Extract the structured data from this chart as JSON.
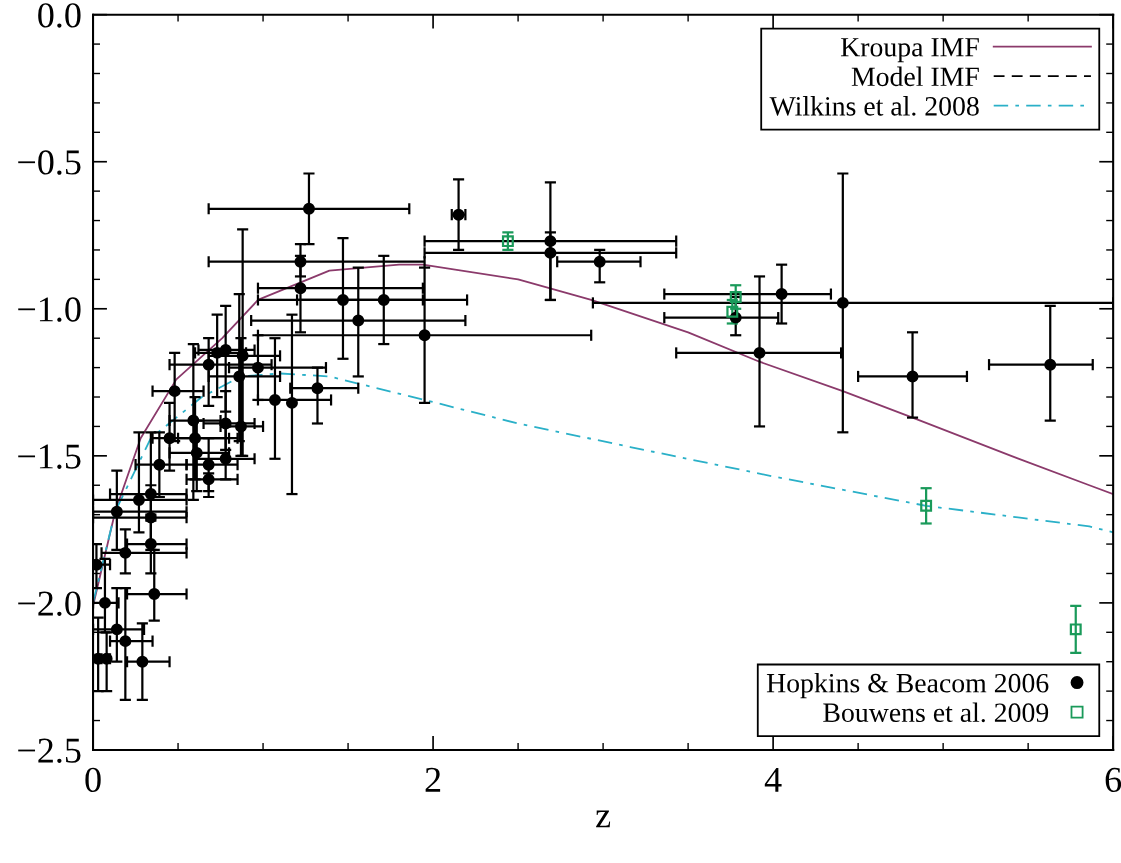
{
  "chart_data": {
    "type": "scatter",
    "xlabel": "z",
    "xlim": [
      0,
      6
    ],
    "xticks": [
      0,
      2,
      4,
      6
    ],
    "ylim": [
      -2.5,
      0.0
    ],
    "yticks": [
      {
        "value": 0.0,
        "label": "0.0"
      },
      {
        "value": -0.5,
        "label": "−0.5"
      },
      {
        "value": -1.0,
        "label": "−1.0"
      },
      {
        "value": -1.5,
        "label": "−1.5"
      },
      {
        "value": -2.0,
        "label": "−2.0"
      },
      {
        "value": -2.5,
        "label": "−2.5"
      }
    ],
    "grid": false,
    "legend": "top right",
    "series": [
      {
        "name": "Kroupa IMF",
        "type": "line",
        "color": "#8b3a6b",
        "line_style": "solid",
        "marker": "none",
        "x": [
          0,
          0.13,
          0.28,
          0.49,
          0.76,
          0.97,
          1.39,
          1.8,
          1.94,
          2.5,
          2.93,
          3.5,
          3.92,
          4.41,
          4.82,
          5.4,
          5.86,
          6.0
        ],
        "values": [
          -2.01,
          -1.69,
          -1.44,
          -1.24,
          -1.1,
          -0.97,
          -0.87,
          -0.85,
          -0.85,
          -0.9,
          -0.97,
          -1.08,
          -1.18,
          -1.28,
          -1.37,
          -1.5,
          -1.6,
          -1.63
        ]
      },
      {
        "name": "Model IMF",
        "type": "line",
        "color": "#000000",
        "line_style": "dashed",
        "marker": "none"
      },
      {
        "name": "Wilkins et al. 2008",
        "type": "line",
        "color": "#2ab0c8",
        "line_style": "dashdot",
        "marker": "none",
        "x": [
          0,
          0.13,
          0.34,
          0.64,
          0.87,
          1.1,
          1.39,
          1.95,
          2.5,
          3.16,
          4.0,
          4.9,
          5.86,
          6.0
        ],
        "values": [
          -2.0,
          -1.69,
          -1.44,
          -1.3,
          -1.23,
          -1.22,
          -1.23,
          -1.31,
          -1.39,
          -1.47,
          -1.57,
          -1.67,
          -1.74,
          -1.76
        ]
      },
      {
        "name": "Hopkins & Beacom 2006",
        "color": "#000000",
        "marker": "circle",
        "x": [
          1.27,
          2.15,
          1.22,
          1.22,
          1.47,
          1.56,
          1.71,
          1.95,
          1.32,
          1.07,
          1.17,
          0.97,
          0.88,
          0.86,
          0.78,
          0.73,
          0.68,
          0.87,
          0.78,
          0.59,
          0.6,
          0.61,
          0.78,
          0.68,
          0.68,
          0.48,
          0.45,
          0.39,
          0.34,
          0.27,
          0.14,
          0.34,
          0.34,
          0.19,
          0.36,
          0.02,
          0.07,
          0.14,
          0.19,
          0.29,
          0.03,
          0.08,
          2.69,
          2.69,
          2.98,
          4.05,
          4.41,
          3.92,
          4.82,
          5.63,
          3.78
        ],
        "values": [
          -0.66,
          -0.68,
          -0.84,
          -0.93,
          -0.97,
          -1.04,
          -0.97,
          -1.09,
          -1.27,
          -1.31,
          -1.32,
          -1.2,
          -1.16,
          -1.23,
          -1.14,
          -1.15,
          -1.19,
          -1.4,
          -1.39,
          -1.38,
          -1.44,
          -1.49,
          -1.51,
          -1.53,
          -1.58,
          -1.28,
          -1.44,
          -1.53,
          -1.63,
          -1.65,
          -1.69,
          -1.71,
          -1.8,
          -1.83,
          -1.97,
          -1.87,
          -2.0,
          -2.09,
          -2.13,
          -2.2,
          -2.19,
          -2.19,
          -0.77,
          -0.81,
          -0.84,
          -0.95,
          -0.98,
          -1.15,
          -1.23,
          -1.19,
          -1.03
        ],
        "errors": [
          [
            -0.78,
            -0.54
          ],
          [
            -0.8,
            -0.56
          ],
          [
            -0.89,
            -0.78
          ],
          [
            -1.08,
            -0.82
          ],
          [
            -1.17,
            -0.76
          ],
          [
            -1.23,
            -0.86
          ],
          [
            -1.12,
            -0.82
          ],
          [
            -1.32,
            -0.86
          ],
          [
            -1.39,
            -1.2
          ],
          [
            -1.51,
            -1.1
          ],
          [
            -1.63,
            -1.02
          ],
          [
            -1.31,
            -1.09
          ],
          [
            -1.5,
            -0.73
          ],
          [
            -1.45,
            -0.95
          ],
          [
            -1.35,
            -0.99
          ],
          [
            -1.3,
            -1.02
          ],
          [
            -1.33,
            -1.1
          ],
          [
            -1.5,
            -1.1
          ],
          [
            -1.48,
            -1.28
          ],
          [
            -1.65,
            -1.12
          ],
          [
            -1.58,
            -1.3
          ],
          [
            -1.62,
            -1.38
          ],
          [
            -1.58,
            -1.4
          ],
          [
            -1.62,
            -1.44
          ],
          [
            -1.64,
            -1.56
          ],
          [
            -1.45,
            -1.15
          ],
          [
            -1.55,
            -1.32
          ],
          [
            -1.64,
            -1.42
          ],
          [
            -1.72,
            -1.42
          ],
          [
            -1.76,
            -1.42
          ],
          [
            -1.82,
            -1.55
          ],
          [
            -1.82,
            -1.6
          ],
          [
            -1.9,
            -1.7
          ],
          [
            -1.9,
            -1.75
          ],
          [
            -2.06,
            -1.82
          ],
          [
            -1.95,
            -1.8
          ],
          [
            -2.1,
            -1.85
          ],
          [
            -2.2,
            -1.95
          ],
          [
            -2.33,
            -1.95
          ],
          [
            -2.33,
            -2.07
          ],
          [
            -2.3,
            -2.05
          ],
          [
            -2.3,
            -2.1
          ],
          [
            -0.97,
            -0.57
          ],
          [
            -0.97,
            -0.74
          ],
          [
            -0.91,
            -0.8
          ],
          [
            -1.05,
            -0.85
          ],
          [
            -1.42,
            -0.54
          ],
          [
            -1.4,
            -0.89
          ],
          [
            -1.37,
            -1.08
          ],
          [
            -1.38,
            -0.99
          ],
          [
            -1.09,
            -0.96
          ]
        ],
        "xerrors": [
          [
            0.68,
            1.86
          ],
          [
            2.11,
            2.19
          ],
          [
            0.68,
            1.95
          ],
          [
            0.97,
            1.94
          ],
          [
            0.97,
            1.94
          ],
          [
            0.93,
            2.19
          ],
          [
            1.2,
            2.2
          ],
          [
            0.97,
            2.93
          ],
          [
            1.16,
            1.56
          ],
          [
            0.97,
            1.4
          ],
          null,
          [
            0.8,
            1.37
          ],
          [
            0.68,
            1.1
          ],
          [
            0.68,
            1.1
          ],
          [
            0.62,
            0.95
          ],
          [
            0.6,
            0.9
          ],
          [
            0.45,
            1.05
          ],
          [
            0.75,
            1.0
          ],
          [
            0.65,
            0.95
          ],
          [
            0.45,
            0.75
          ],
          [
            0.5,
            0.8
          ],
          [
            0.45,
            0.8
          ],
          [
            0.6,
            0.95
          ],
          [
            0.55,
            0.85
          ],
          [
            0.55,
            0.85
          ],
          [
            0.35,
            0.65
          ],
          [
            0.35,
            0.85
          ],
          [
            0.25,
            0.55
          ],
          [
            0.1,
            0.55
          ],
          [
            0.0,
            0.55
          ],
          [
            0.0,
            0.55
          ],
          [
            0.0,
            0.55
          ],
          [
            0.2,
            0.55
          ],
          [
            0.05,
            0.55
          ],
          [
            0.2,
            0.55
          ],
          [
            0.0,
            0.1
          ],
          [
            0.0,
            0.15
          ],
          [
            0.0,
            0.3
          ],
          [
            0.1,
            0.35
          ],
          [
            0.2,
            0.45
          ],
          [
            0.0,
            0.05
          ],
          [
            0.0,
            0.1
          ],
          [
            1.95,
            3.43
          ],
          [
            1.95,
            3.43
          ],
          [
            2.73,
            3.22
          ],
          [
            3.36,
            4.34
          ],
          [
            2.94,
            6.0
          ],
          [
            3.43,
            4.4
          ],
          [
            4.5,
            5.14
          ],
          [
            5.27,
            5.88
          ],
          [
            3.36,
            4.03
          ]
        ]
      },
      {
        "name": "Bouwens et al. 2009",
        "color": "#1a9a5a",
        "marker": "square",
        "x": [
          2.44,
          3.78,
          3.76,
          4.9,
          5.78
        ],
        "values": [
          -0.77,
          -0.96,
          -1.01,
          -1.67,
          -2.09
        ],
        "errors": [
          [
            -0.8,
            -0.74
          ],
          [
            -1.0,
            -0.92
          ],
          [
            -1.05,
            -0.97
          ],
          [
            -1.73,
            -1.61
          ],
          [
            -2.17,
            -2.01
          ]
        ]
      }
    ]
  }
}
